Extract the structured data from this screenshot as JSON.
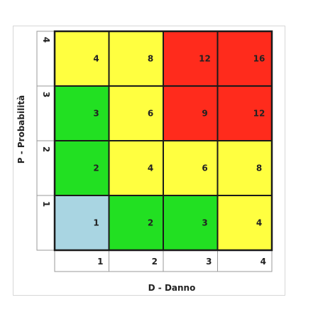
{
  "chart_data": {
    "type": "heatmap",
    "xlabel": "D - Danno",
    "ylabel": "P - Probabilità",
    "x_ticks": [
      "1",
      "2",
      "3",
      "4"
    ],
    "y_ticks": [
      "1",
      "2",
      "3",
      "4"
    ],
    "rows": [
      {
        "p": "4",
        "values": [
          "4",
          "8",
          "12",
          "16"
        ],
        "colors": [
          "#ffff40",
          "#ffff40",
          "#ff2b1c",
          "#ff2b1c"
        ]
      },
      {
        "p": "3",
        "values": [
          "3",
          "6",
          "9",
          "12"
        ],
        "colors": [
          "#22e022",
          "#ffff40",
          "#ff2b1c",
          "#ff2b1c"
        ]
      },
      {
        "p": "2",
        "values": [
          "2",
          "4",
          "6",
          "8"
        ],
        "colors": [
          "#22e022",
          "#ffff40",
          "#ffff40",
          "#ffff40"
        ]
      },
      {
        "p": "1",
        "values": [
          "1",
          "2",
          "3",
          "4"
        ],
        "colors": [
          "#a9d5e2",
          "#22e022",
          "#22e022",
          "#ffff40"
        ]
      }
    ]
  }
}
